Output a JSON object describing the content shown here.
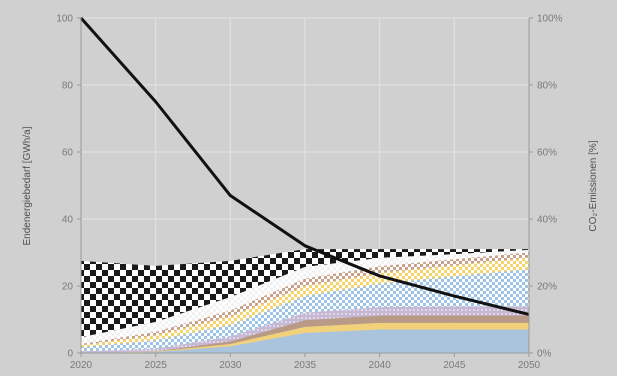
{
  "chart_data": {
    "type": "area",
    "x": [
      2020,
      2025,
      2030,
      2035,
      2040,
      2045,
      2050
    ],
    "ylabel": "Endenergiebedarf [GWh/a]",
    "ylabel_right": "CO₂-Emissionen [%]",
    "ylim": [
      0,
      100
    ],
    "ylim_right": [
      0,
      100
    ],
    "yticks": [
      "0",
      "20",
      "40",
      "60",
      "80",
      "100"
    ],
    "yticks_right": [
      "0%",
      "20%",
      "40%",
      "60%",
      "80%",
      "100%"
    ],
    "xticks": [
      "2020",
      "2025",
      "2030",
      "2035",
      "2040",
      "2045",
      "2050"
    ],
    "grid": true,
    "stacked_series": [
      {
        "values": [
          0,
          0.3,
          2.0,
          6.0,
          7.0,
          7.0,
          7.0
        ],
        "color": "#a9c4dc",
        "pattern": "solid"
      },
      {
        "values": [
          0,
          0.1,
          0.7,
          1.8,
          2.0,
          2.0,
          2.0
        ],
        "color": "#f1d27a",
        "pattern": "solid"
      },
      {
        "values": [
          0,
          0.1,
          0.8,
          2.0,
          2.2,
          2.2,
          2.2
        ],
        "color": "#b89a86",
        "pattern": "solid"
      },
      {
        "values": [
          0.5,
          0.8,
          1.4,
          2.2,
          2.5,
          2.7,
          2.8
        ],
        "color": "#c6b8d4",
        "pattern": "dots"
      },
      {
        "values": [
          1.2,
          2.5,
          3.5,
          5.0,
          7.0,
          9.0,
          11.0
        ],
        "color": "#9dc3e6",
        "pattern": "checker-small"
      },
      {
        "values": [
          0.6,
          1.5,
          2.5,
          3.0,
          3.2,
          3.3,
          3.5
        ],
        "color": "#f6d36b",
        "pattern": "checker-small"
      },
      {
        "values": [
          0.4,
          1.0,
          1.8,
          2.2,
          2.0,
          1.8,
          1.5
        ],
        "color": "#c9a08a",
        "pattern": "checker-small"
      },
      {
        "values": [
          2.0,
          3.0,
          4.0,
          3.5,
          2.5,
          1.5,
          0.8
        ],
        "color": "#f2f2f2",
        "pattern": "checker-small"
      },
      {
        "values": [
          22.8,
          16.7,
          10.8,
          5.3,
          2.6,
          1.5,
          0.2
        ],
        "color": "#1a1a1a",
        "pattern": "checker-large"
      }
    ],
    "line_series": {
      "axis": "right",
      "values": [
        100,
        75,
        47,
        32,
        23,
        17,
        11.5
      ],
      "color": "#111111"
    }
  }
}
